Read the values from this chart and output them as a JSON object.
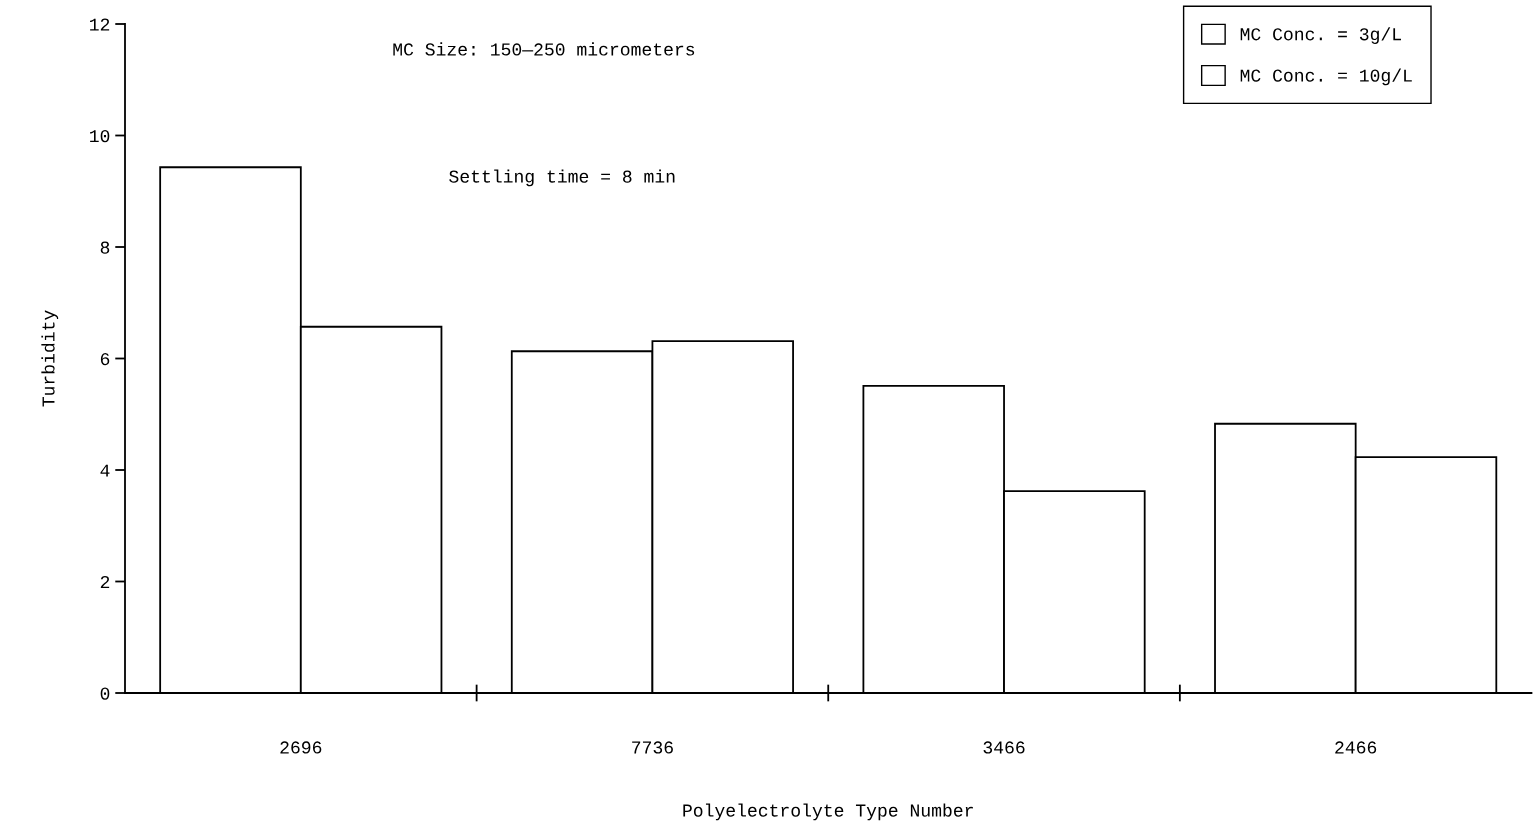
{
  "chart_data": {
    "type": "bar",
    "xlabel": "Polyelectrolyte Type Number",
    "ylabel": "Turbidity",
    "categories": [
      "2696",
      "7736",
      "3466",
      "2466"
    ],
    "series": [
      {
        "name": "MC Conc. = 3g/L",
        "color": "#ffffff",
        "values": [
          9.43,
          6.13,
          5.51,
          4.83
        ]
      },
      {
        "name": "MC Conc. = 10g/L",
        "color": "#ffffff",
        "values": [
          6.57,
          6.31,
          3.62,
          4.23
        ]
      }
    ],
    "ylim": [
      0,
      12
    ],
    "yticks": [
      0,
      2,
      4,
      6,
      8,
      10,
      12
    ],
    "annotations": [
      "MC Size: 150—250 micrometers",
      "Settling time = 8 min"
    ],
    "legend": "top right",
    "grid": false
  }
}
